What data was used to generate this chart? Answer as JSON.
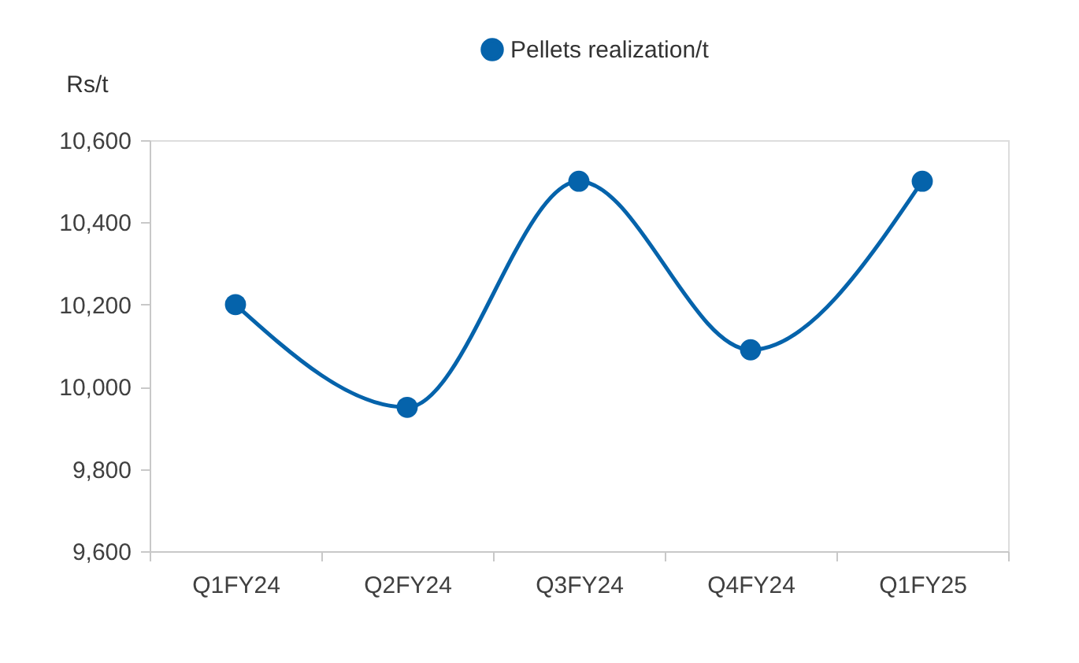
{
  "chart_data": {
    "type": "line",
    "ylabel": "Rs/t",
    "categories": [
      "Q1FY24",
      "Q2FY24",
      "Q3FY24",
      "Q4FY24",
      "Q1FY25"
    ],
    "series": [
      {
        "name": "Pellets realization/t",
        "color": "#0563ab",
        "values": [
          10200,
          9950,
          10500,
          10090,
          10500
        ]
      }
    ],
    "ylim": [
      9600,
      10600
    ],
    "yticks": [
      {
        "value": 9600,
        "label": "9,600"
      },
      {
        "value": 9800,
        "label": "9,800"
      },
      {
        "value": 10000,
        "label": "10,000"
      },
      {
        "value": 10200,
        "label": "10,200"
      },
      {
        "value": 10400,
        "label": "10,400"
      },
      {
        "value": 10600,
        "label": "10,600"
      }
    ],
    "grid": false,
    "legend": "top",
    "marker": "circle",
    "line_style": "solid"
  }
}
